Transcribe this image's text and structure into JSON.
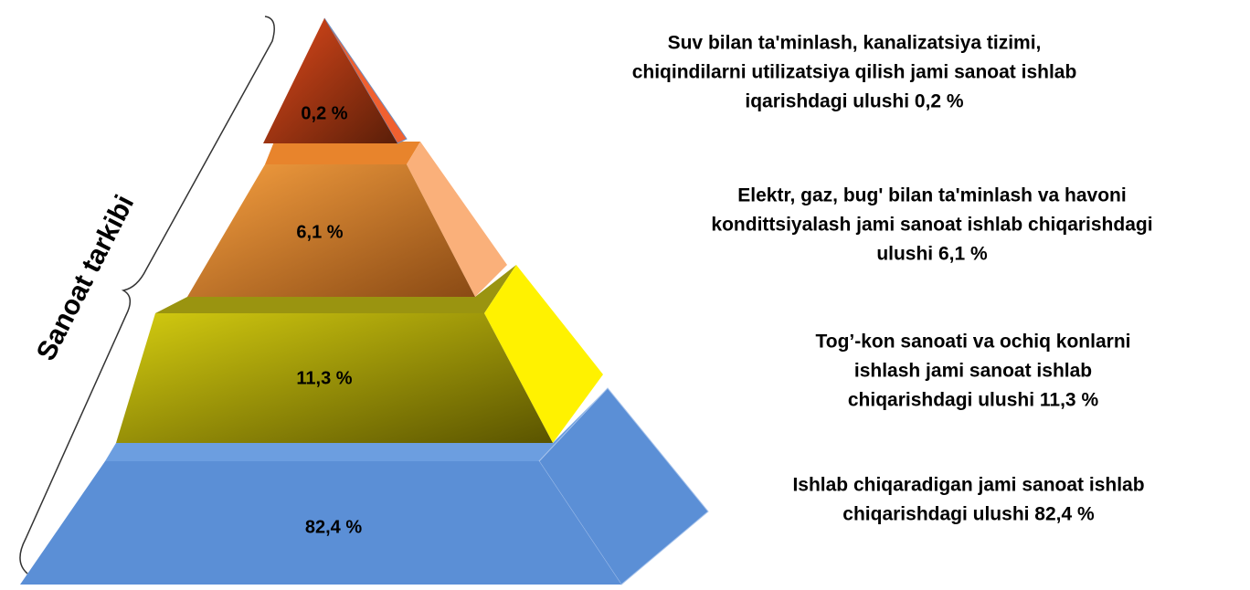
{
  "side_label": "Sanoat tarkibi",
  "layers": [
    {
      "label": "0,2 %",
      "description": [
        "Suv bilan ta'minlash, kanalizatsiya tizimi,",
        "chiqindilarni utilizatsiya qilish jami sanoat ishlab",
        "iqarishdagi ulushi  0,2 %"
      ]
    },
    {
      "label": "6,1 %",
      "description": [
        "Elektr, gaz, bug'  bilan ta'minlash  va havoni",
        "kondittsiyalash jami sanoat ishlab chiqarishdagi",
        "ulushi  6,1 %"
      ]
    },
    {
      "label": "11,3 %",
      "description": [
        "Tog’-kon sanoati va ochiq konlarni",
        "ishlash jami sanoat ishlab",
        "chiqarishdagi ulushi  11,3 %"
      ]
    },
    {
      "label": "82,4 %",
      "description": [
        "Ishlab chiqaradigan jami sanoat ishlab",
        "chiqarishdagi ulushi 82,4 %"
      ]
    }
  ]
}
